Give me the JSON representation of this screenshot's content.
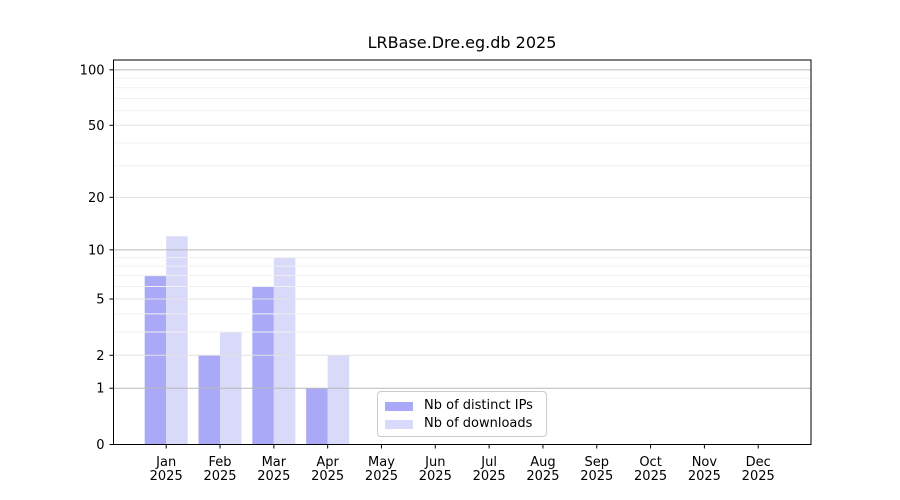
{
  "chart_data": {
    "type": "bar",
    "title": "LRBase.Dre.eg.db 2025",
    "x_tick_months": [
      "Jan",
      "Feb",
      "Mar",
      "Apr",
      "May",
      "Jun",
      "Jul",
      "Aug",
      "Sep",
      "Oct",
      "Nov",
      "Dec"
    ],
    "x_tick_year": "2025",
    "categories": [
      "Jan 2025",
      "Feb 2025",
      "Mar 2025",
      "Apr 2025",
      "May 2025",
      "Jun 2025",
      "Jul 2025",
      "Aug 2025",
      "Sep 2025",
      "Oct 2025",
      "Nov 2025",
      "Dec 2025"
    ],
    "series": [
      {
        "name": "Nb of distinct IPs",
        "color": "#a9a9f7",
        "values": [
          7,
          2,
          6,
          1,
          0,
          0,
          0,
          0,
          0,
          0,
          0,
          0
        ]
      },
      {
        "name": "Nb of downloads",
        "color": "#d9d9fa",
        "values": [
          12,
          3,
          9,
          2,
          0,
          0,
          0,
          0,
          0,
          0,
          0,
          0
        ]
      }
    ],
    "y_scale": "log1p",
    "y_ticks": [
      0,
      1,
      2,
      5,
      10,
      20,
      50,
      100
    ],
    "y_minor_ticks": [
      3,
      4,
      6,
      7,
      8,
      9,
      30,
      40,
      60,
      70,
      80,
      90
    ],
    "ylim": [
      0,
      113
    ],
    "grid": "horizontal",
    "legend_position": "inside-bottom-center",
    "colors": {
      "axis": "#000000",
      "grid_decade": "#b9b9b9",
      "grid_major": "#e2e2e2",
      "grid_minor": "#f1f1f1",
      "background": "#ffffff"
    }
  }
}
